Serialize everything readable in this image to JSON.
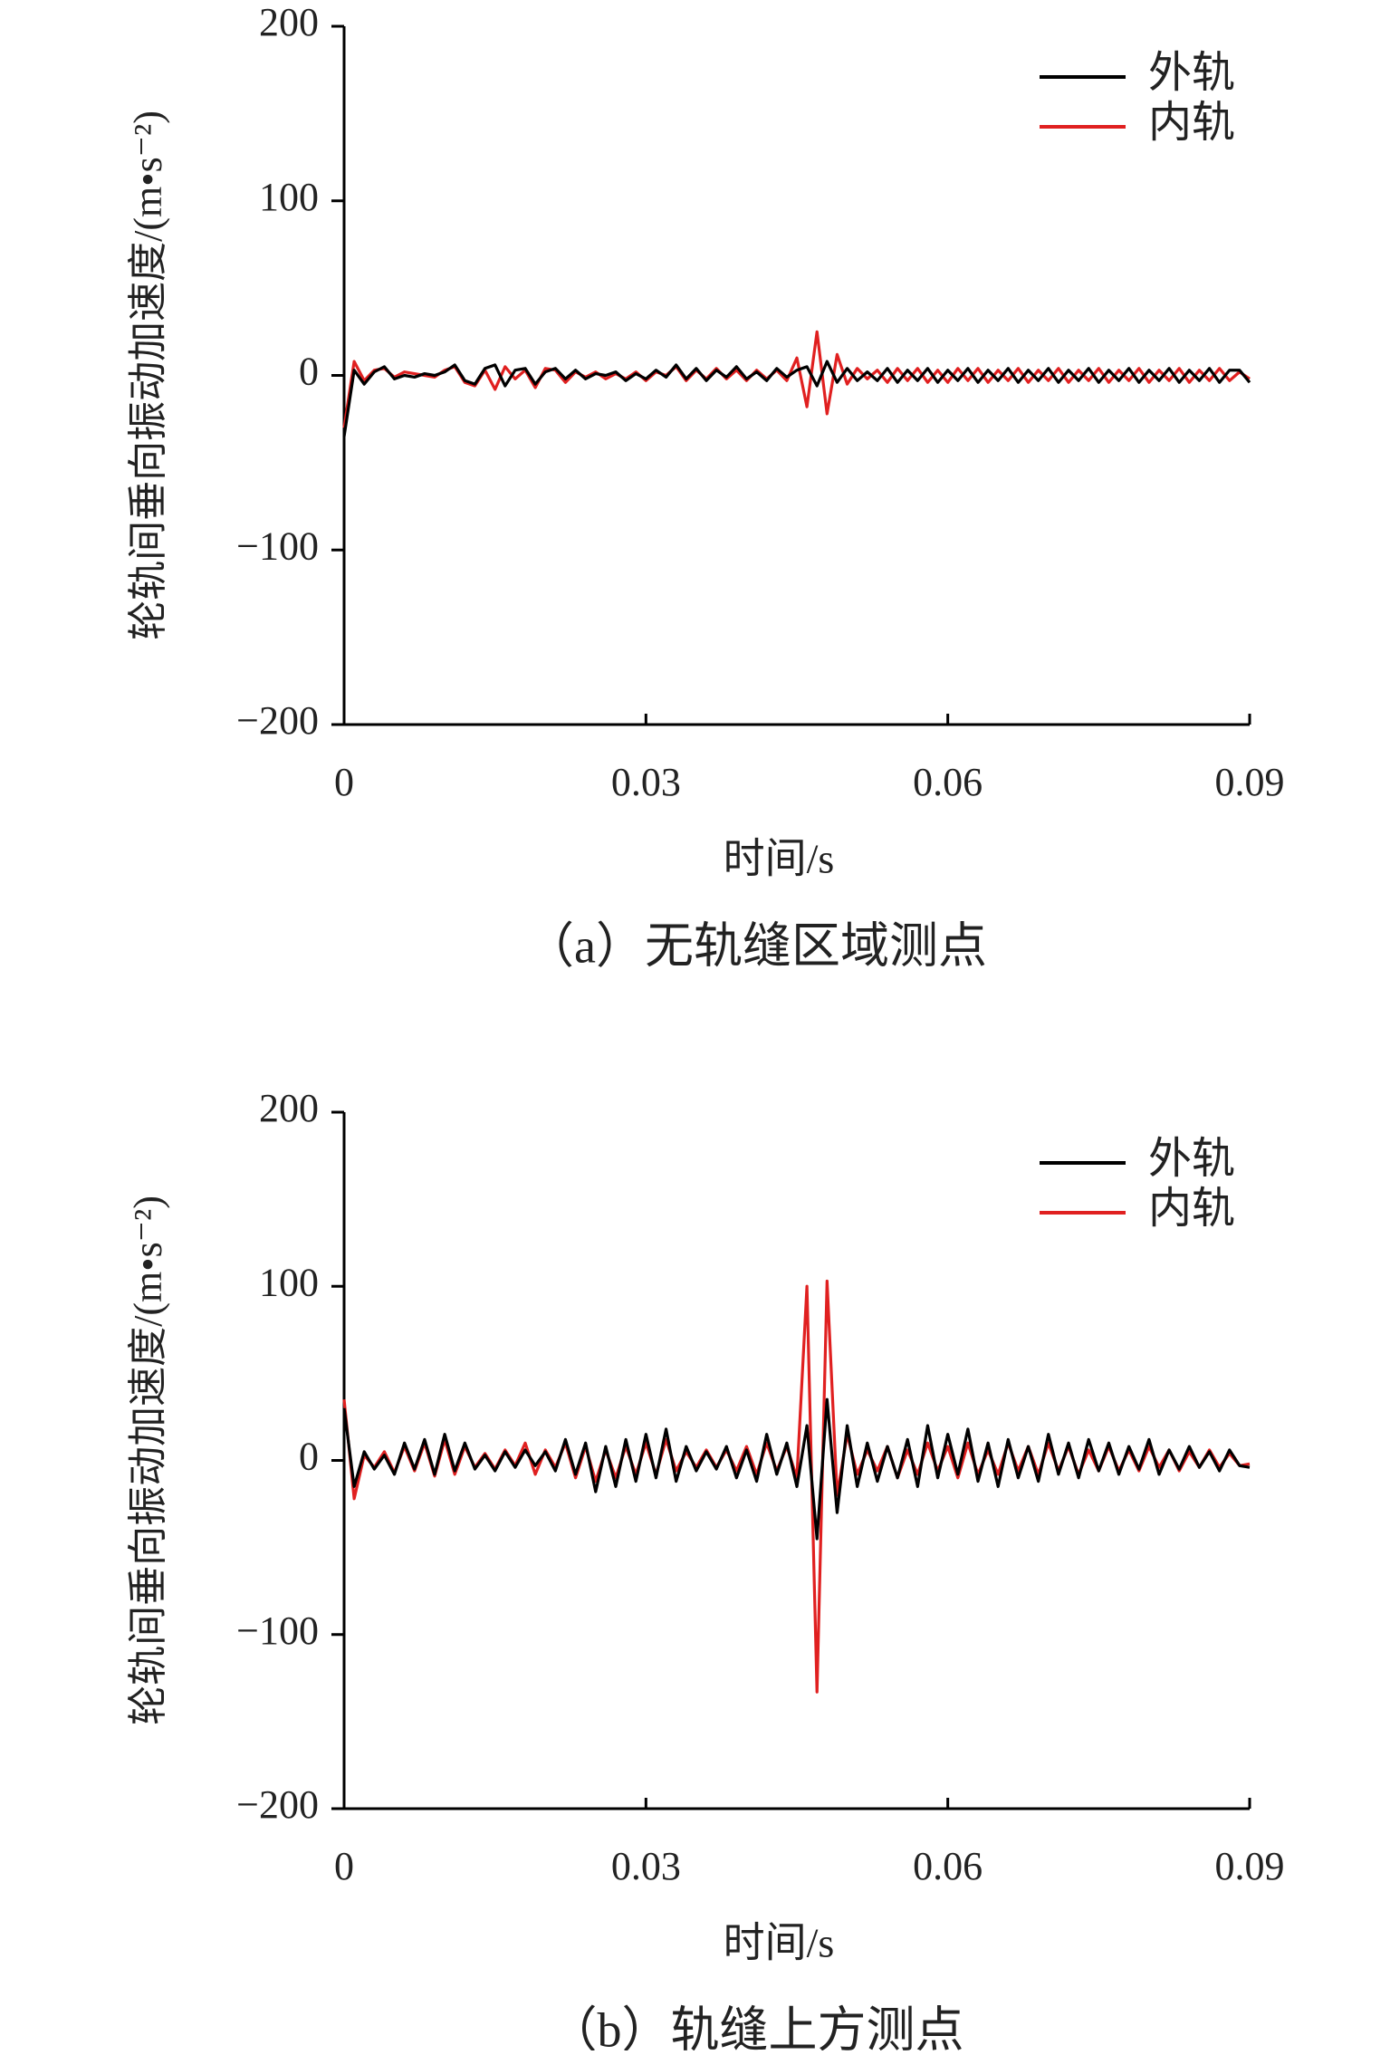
{
  "chart_data": [
    {
      "type": "line",
      "caption": "（a）无轨缝区域测点",
      "xlabel": "时间/s",
      "ylabel": "轮轨间垂向振动加速度/(m•s⁻²)",
      "xlim": [
        0,
        0.09
      ],
      "ylim": [
        -200,
        200
      ],
      "xticks": [
        0,
        0.03,
        0.06,
        0.09
      ],
      "yticks": [
        {
          "value": -200,
          "label": "−200"
        },
        {
          "value": -100,
          "label": "−100"
        },
        0,
        100,
        200
      ],
      "legend": "upper right",
      "x": [
        0,
        0.001,
        0.002,
        0.003,
        0.004,
        0.005,
        0.006,
        0.007,
        0.008,
        0.009,
        0.01,
        0.011,
        0.012,
        0.013,
        0.014,
        0.015,
        0.016,
        0.017,
        0.018,
        0.019,
        0.02,
        0.021,
        0.022,
        0.023,
        0.024,
        0.025,
        0.026,
        0.027,
        0.028,
        0.029,
        0.03,
        0.031,
        0.032,
        0.033,
        0.034,
        0.035,
        0.036,
        0.037,
        0.038,
        0.039,
        0.04,
        0.041,
        0.042,
        0.043,
        0.044,
        0.045,
        0.046,
        0.047,
        0.048,
        0.049,
        0.05,
        0.051,
        0.052,
        0.053,
        0.054,
        0.055,
        0.056,
        0.057,
        0.058,
        0.059,
        0.06,
        0.061,
        0.062,
        0.063,
        0.064,
        0.065,
        0.066,
        0.067,
        0.068,
        0.069,
        0.07,
        0.071,
        0.072,
        0.073,
        0.074,
        0.075,
        0.076,
        0.077,
        0.078,
        0.079,
        0.08,
        0.081,
        0.082,
        0.083,
        0.084,
        0.085,
        0.086,
        0.087,
        0.088,
        0.089,
        0.09
      ],
      "series": [
        {
          "name": "外轨",
          "color": "#000000",
          "values": [
            -35,
            3,
            -5,
            2,
            5,
            -2,
            0,
            -1,
            1,
            0,
            2,
            6,
            -3,
            -5,
            4,
            6,
            -6,
            3,
            4,
            -5,
            2,
            4,
            -2,
            3,
            -2,
            1,
            0,
            2,
            -3,
            1,
            -2,
            3,
            -1,
            6,
            -2,
            4,
            -3,
            3,
            -1,
            5,
            -2,
            2,
            -3,
            4,
            -1,
            3,
            5,
            -6,
            8,
            -4,
            4,
            -3,
            2,
            -3,
            4,
            -4,
            3,
            -3,
            4,
            -4,
            3,
            -3,
            4,
            -4,
            3,
            -3,
            4,
            -4,
            3,
            -3,
            4,
            -4,
            3,
            -3,
            4,
            -4,
            3,
            -3,
            4,
            -4,
            3,
            -3,
            4,
            -4,
            3,
            -3,
            4,
            -4,
            3,
            3,
            -4
          ]
        },
        {
          "name": "内轨",
          "color": "#e02020",
          "values": [
            -30,
            8,
            -3,
            3,
            4,
            -1,
            2,
            1,
            0,
            -1,
            3,
            5,
            -4,
            -6,
            3,
            -8,
            5,
            -2,
            3,
            -7,
            4,
            3,
            -4,
            2,
            -1,
            2,
            -2,
            1,
            -2,
            2,
            -3,
            2,
            0,
            5,
            -3,
            3,
            -2,
            4,
            -2,
            3,
            -3,
            3,
            -2,
            3,
            -3,
            10,
            -18,
            25,
            -22,
            12,
            -5,
            4,
            -2,
            3,
            -4,
            4,
            -3,
            4,
            -4,
            3,
            -4,
            4,
            -3,
            4,
            -4,
            3,
            -3,
            4,
            -4,
            3,
            -3,
            4,
            -4,
            3,
            -3,
            4,
            -4,
            3,
            -3,
            4,
            -4,
            3,
            -3,
            4,
            -4,
            3,
            -3,
            4,
            -3,
            2,
            -2
          ]
        }
      ]
    },
    {
      "type": "line",
      "caption": "（b）轨缝上方测点",
      "xlabel": "时间/s",
      "ylabel": "轮轨间垂向振动加速度/(m•s⁻²)",
      "xlim": [
        0,
        0.09
      ],
      "ylim": [
        -200,
        200
      ],
      "xticks": [
        0,
        0.03,
        0.06,
        0.09
      ],
      "yticks": [
        {
          "value": -200,
          "label": "−200"
        },
        {
          "value": -100,
          "label": "−100"
        },
        0,
        100,
        200
      ],
      "legend": "upper right",
      "x": [
        0,
        0.001,
        0.002,
        0.003,
        0.004,
        0.005,
        0.006,
        0.007,
        0.008,
        0.009,
        0.01,
        0.011,
        0.012,
        0.013,
        0.014,
        0.015,
        0.016,
        0.017,
        0.018,
        0.019,
        0.02,
        0.021,
        0.022,
        0.023,
        0.024,
        0.025,
        0.026,
        0.027,
        0.028,
        0.029,
        0.03,
        0.031,
        0.032,
        0.033,
        0.034,
        0.035,
        0.036,
        0.037,
        0.038,
        0.039,
        0.04,
        0.041,
        0.042,
        0.043,
        0.044,
        0.045,
        0.046,
        0.047,
        0.048,
        0.049,
        0.05,
        0.051,
        0.052,
        0.053,
        0.054,
        0.055,
        0.056,
        0.057,
        0.058,
        0.059,
        0.06,
        0.061,
        0.062,
        0.063,
        0.064,
        0.065,
        0.066,
        0.067,
        0.068,
        0.069,
        0.07,
        0.071,
        0.072,
        0.073,
        0.074,
        0.075,
        0.076,
        0.077,
        0.078,
        0.079,
        0.08,
        0.081,
        0.082,
        0.083,
        0.084,
        0.085,
        0.086,
        0.087,
        0.088,
        0.089,
        0.09
      ],
      "series": [
        {
          "name": "外轨",
          "color": "#000000",
          "values": [
            30,
            -15,
            5,
            -5,
            3,
            -8,
            10,
            -5,
            12,
            -8,
            15,
            -6,
            10,
            -5,
            3,
            -6,
            5,
            -4,
            6,
            -3,
            5,
            -6,
            12,
            -8,
            10,
            -18,
            8,
            -15,
            12,
            -12,
            15,
            -10,
            18,
            -12,
            8,
            -6,
            5,
            -5,
            8,
            -10,
            6,
            -12,
            15,
            -8,
            10,
            -15,
            20,
            -45,
            35,
            -30,
            20,
            -15,
            10,
            -12,
            8,
            -10,
            12,
            -15,
            20,
            -10,
            15,
            -8,
            18,
            -12,
            10,
            -15,
            12,
            -10,
            8,
            -12,
            15,
            -8,
            10,
            -10,
            12,
            -6,
            10,
            -8,
            8,
            -5,
            12,
            -8,
            6,
            -5,
            8,
            -4,
            5,
            -6,
            6,
            -3,
            -4
          ]
        },
        {
          "name": "内轨",
          "color": "#e02020",
          "values": [
            35,
            -22,
            3,
            -4,
            5,
            -7,
            8,
            -6,
            10,
            -9,
            12,
            -8,
            8,
            -4,
            4,
            -5,
            6,
            -3,
            10,
            -8,
            6,
            -4,
            10,
            -10,
            8,
            -12,
            6,
            -10,
            8,
            -8,
            10,
            -8,
            12,
            -6,
            5,
            -4,
            6,
            -4,
            6,
            -6,
            8,
            -8,
            10,
            -6,
            8,
            -10,
            100,
            -133,
            103,
            -20,
            15,
            -8,
            6,
            -6,
            8,
            -10,
            6,
            -8,
            10,
            -6,
            8,
            -10,
            10,
            -8,
            6,
            -8,
            10,
            -6,
            8,
            -8,
            10,
            -6,
            8,
            -8,
            6,
            -6,
            8,
            -6,
            6,
            -6,
            8,
            -4,
            6,
            -6,
            5,
            -4,
            6,
            -4,
            4,
            -3,
            -2
          ]
        }
      ]
    }
  ]
}
